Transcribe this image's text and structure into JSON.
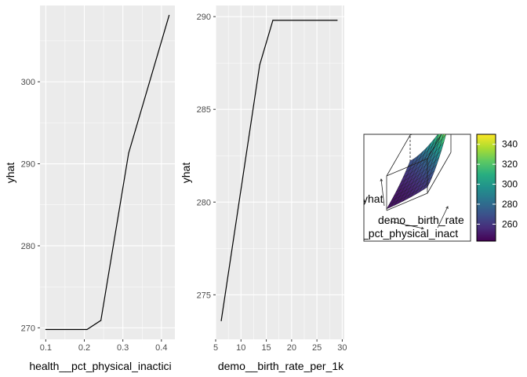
{
  "chart_data": [
    {
      "type": "line",
      "xlabel": "health__pct_physical_inactici",
      "ylabel": "yhat",
      "xlim": [
        0.085,
        0.435
      ],
      "ylim": [
        268.6,
        309.3
      ],
      "x_ticks": [
        0.1,
        0.2,
        0.3,
        0.4
      ],
      "x_tick_labels": [
        "0.1",
        "0.2",
        "0.3",
        "0.4"
      ],
      "y_ticks": [
        270,
        280,
        290,
        300
      ],
      "y_tick_labels": [
        "270",
        "280",
        "290",
        "300"
      ],
      "grid": true,
      "x": [
        0.1,
        0.207,
        0.243,
        0.315,
        0.42
      ],
      "y": [
        269.8,
        269.8,
        270.9,
        291.3,
        308.1
      ]
    },
    {
      "type": "line",
      "xlabel": "demo__birth_rate_per_1k",
      "ylabel": "yhat",
      "xlim": [
        5.0,
        30.4
      ],
      "ylim": [
        272.6,
        290.6
      ],
      "x_ticks": [
        5,
        10,
        15,
        20,
        25,
        30
      ],
      "x_tick_labels": [
        "5",
        "10",
        "15",
        "20",
        "25",
        "30"
      ],
      "y_ticks": [
        275,
        280,
        285,
        290
      ],
      "y_tick_labels": [
        "275",
        "280",
        "285",
        "290"
      ],
      "grid": true,
      "x": [
        6.1,
        13.7,
        16.3,
        29.0
      ],
      "y": [
        273.6,
        287.4,
        289.8,
        289.8
      ]
    },
    {
      "type": "surface",
      "axis_labels": [
        "yhat",
        "demo__birth_rate",
        "_pct_physical_inact"
      ],
      "colorbar": {
        "ticks": [
          260,
          280,
          300,
          320,
          340
        ],
        "tick_labels": [
          "260",
          "280",
          "300",
          "320",
          "340"
        ],
        "range": [
          243,
          350
        ],
        "colormap": "viridis"
      }
    }
  ],
  "colors": {
    "panel_bg": "#ebebeb",
    "grid_major": "#ffffff",
    "line": "#000000",
    "tick_text": "#4d4d4d"
  }
}
